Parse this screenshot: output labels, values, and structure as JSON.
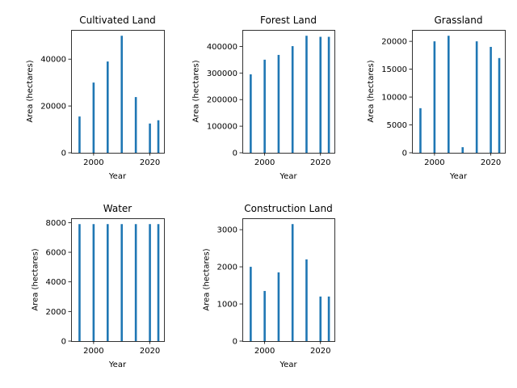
{
  "chart_data": [
    {
      "type": "bar",
      "title": "Cultivated Land",
      "xlabel": "Year",
      "ylabel": "Area (hectares)",
      "x": [
        1995,
        2000,
        2005,
        2010,
        2015,
        2020,
        2023
      ],
      "values": [
        15500,
        30000,
        39000,
        50000,
        23800,
        12500,
        13900
      ],
      "xlim": [
        1992,
        2025
      ],
      "ylim": [
        0,
        52500
      ],
      "xticks": [
        2000,
        2020
      ],
      "yticks": [
        0,
        20000,
        40000
      ],
      "color": "#1f77b4"
    },
    {
      "type": "bar",
      "title": "Forest Land",
      "xlabel": "Year",
      "ylabel": "Area (hectares)",
      "x": [
        1995,
        2000,
        2005,
        2010,
        2015,
        2020,
        2023
      ],
      "values": [
        295000,
        350000,
        368000,
        401000,
        440000,
        436000,
        436000
      ],
      "xlim": [
        1992,
        2025
      ],
      "ylim": [
        0,
        462000
      ],
      "xticks": [
        2000,
        2020
      ],
      "yticks": [
        0,
        100000,
        200000,
        300000,
        400000
      ],
      "color": "#1f77b4"
    },
    {
      "type": "bar",
      "title": "Grassland",
      "xlabel": "Year",
      "ylabel": "Area (hectares)",
      "x": [
        1995,
        2000,
        2005,
        2010,
        2015,
        2020,
        2023
      ],
      "values": [
        8000,
        20000,
        21000,
        1000,
        20000,
        19000,
        17000
      ],
      "xlim": [
        1992,
        2025
      ],
      "ylim": [
        0,
        22050
      ],
      "xticks": [
        2000,
        2020
      ],
      "yticks": [
        0,
        5000,
        10000,
        15000,
        20000
      ],
      "color": "#1f77b4"
    },
    {
      "type": "bar",
      "title": "Water",
      "xlabel": "Year",
      "ylabel": "Area (hectares)",
      "x": [
        1995,
        2000,
        2005,
        2010,
        2015,
        2020,
        2023
      ],
      "values": [
        7900,
        7900,
        7900,
        7900,
        7900,
        7900,
        7900
      ],
      "xlim": [
        1992,
        2025
      ],
      "ylim": [
        0,
        8295
      ],
      "xticks": [
        2000,
        2020
      ],
      "yticks": [
        0,
        2000,
        4000,
        6000,
        8000
      ],
      "color": "#1f77b4"
    },
    {
      "type": "bar",
      "title": "Construction Land",
      "xlabel": "Year",
      "ylabel": "Area (hectares)",
      "x": [
        1995,
        2000,
        2005,
        2010,
        2015,
        2020,
        2023
      ],
      "values": [
        2000,
        1350,
        1850,
        3150,
        2200,
        1200,
        1200
      ],
      "xlim": [
        1992,
        2025
      ],
      "ylim": [
        0,
        3307
      ],
      "xticks": [
        2000,
        2020
      ],
      "yticks": [
        0,
        1000,
        2000,
        3000
      ],
      "color": "#1f77b4"
    }
  ]
}
